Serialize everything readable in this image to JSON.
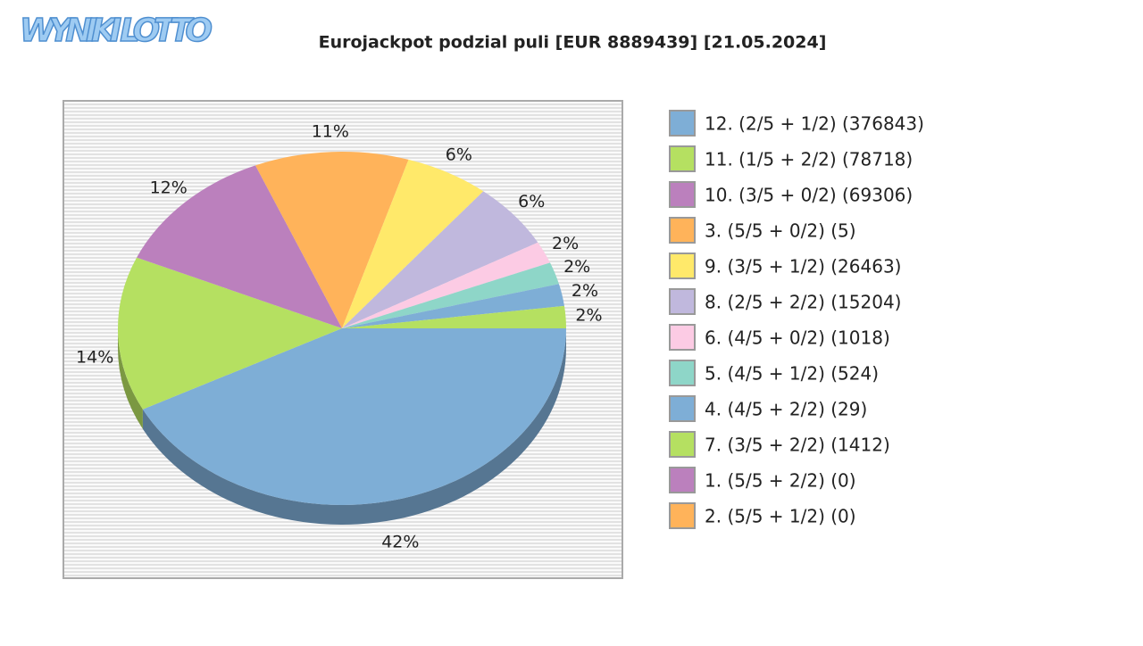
{
  "logo": "WYNIKI LOTTO",
  "chart_data": {
    "type": "pie",
    "title": "Eurojackpot podzial puli [EUR 8889439] [21.05.2024]",
    "categories": [
      "12. (2/5 + 1/2) (376843)",
      "11. (1/5 + 2/2) (78718)",
      "10. (3/5 + 0/2) (69306)",
      "3. (5/5 + 0/2) (5)",
      "9. (3/5 + 1/2) (26463)",
      "8. (2/5 + 2/2) (15204)",
      "6. (4/5 + 0/2) (1018)",
      "5. (4/5 + 1/2) (524)",
      "4. (4/5 + 2/2) (29)",
      "7. (3/5 + 2/2) (1412)",
      "1. (5/5 + 2/2) (0)",
      "2. (5/5 + 1/2) (0)"
    ],
    "values": [
      42,
      14,
      12,
      11,
      6,
      6,
      2,
      2,
      2,
      2,
      0,
      0
    ],
    "value_labels": [
      "42%",
      "14%",
      "12%",
      "11%",
      "6%",
      "6%",
      "2%",
      "2%",
      "2%",
      "2%",
      null,
      null
    ],
    "colors": [
      "#7eaed6",
      "#b5e061",
      "#bb80bd",
      "#ffb35a",
      "#ffe96a",
      "#c0b8dd",
      "#fccbe4",
      "#8ed6c8",
      "#7eaed6",
      "#b5e061",
      "#bb80bd",
      "#ffb35a"
    ]
  }
}
